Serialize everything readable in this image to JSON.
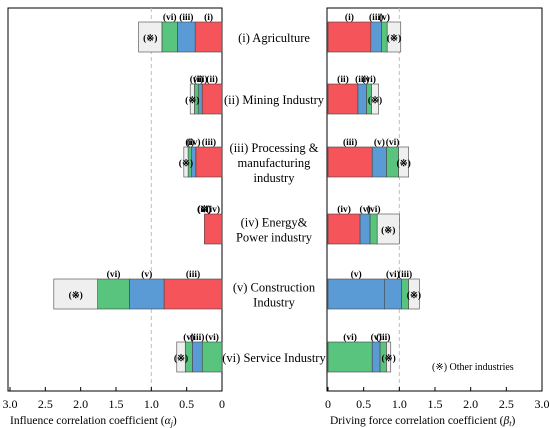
{
  "colors": {
    "vi": "#58c47e",
    "v": "#5b9bd5",
    "iii": "#f4545a",
    "ii": "#f4545a",
    "iv": "#f4545a",
    "i": "#f4545a",
    "other": "#efefef",
    "frame": "#000000",
    "refline": "#bfbfbf"
  },
  "chart_data": [
    {
      "type": "bar",
      "orientation": "horizontal-stacked",
      "x_reversed": true,
      "xlabel_prefix": "Influence correlation coefficient (",
      "xlabel_sym": "α",
      "xlabel_sub": "j",
      "xlabel_suffix": ")",
      "xlim": [
        0,
        3.0
      ],
      "xticks": [
        "3.0",
        "2.5",
        "2.0",
        "1.5",
        "1.0",
        "0.5",
        "0"
      ],
      "reference_line": 1.0,
      "industries": [
        {
          "segments": [
            {
              "key": "i",
              "label": "(i)",
              "value": 0.38
            },
            {
              "key": "v",
              "label": "(iii)",
              "value": 0.25
            },
            {
              "key": "vi",
              "label": "(vi)",
              "value": 0.22
            },
            {
              "key": "other",
              "label": "(※)",
              "value": 0.33
            }
          ]
        },
        {
          "segments": [
            {
              "key": "ii",
              "label": "(ii)",
              "value": 0.28
            },
            {
              "key": "v",
              "label": "(iii)",
              "value": 0.05
            },
            {
              "key": "vi",
              "label": "(vi)",
              "value": 0.06
            },
            {
              "key": "other",
              "label": "(※)",
              "value": 0.06
            }
          ]
        },
        {
          "segments": [
            {
              "key": "iii",
              "label": "(iii)",
              "value": 0.37
            },
            {
              "key": "v",
              "label": "(iv)",
              "value": 0.06
            },
            {
              "key": "vi",
              "label": "(i)",
              "value": 0.05
            },
            {
              "key": "other",
              "label": "(※)",
              "value": 0.06
            }
          ]
        },
        {
          "segments": [
            {
              "key": "iv",
              "label": "(iv)",
              "value": 0.25
            },
            {
              "key": "v",
              "label": "(iii)",
              "value": 0.0
            },
            {
              "key": "vi",
              "label": "(vi)",
              "value": 0.0
            },
            {
              "key": "other",
              "label": "(※)",
              "value": 0.0
            }
          ]
        },
        {
          "segments": [
            {
              "key": "iii",
              "label": "(iii)",
              "value": 0.82
            },
            {
              "key": "v",
              "label": "(v)",
              "value": 0.49
            },
            {
              "key": "vi",
              "label": "(vi)",
              "value": 0.45
            },
            {
              "key": "other",
              "label": "(※)",
              "value": 0.62
            }
          ]
        },
        {
          "segments": [
            {
              "key": "vi",
              "label": "(vi)",
              "value": 0.28
            },
            {
              "key": "v",
              "label": "(iii)",
              "value": 0.14
            },
            {
              "key": "vi",
              "label": "(v)",
              "value": 0.1
            },
            {
              "key": "other",
              "label": "(※)",
              "value": 0.12
            }
          ]
        }
      ]
    },
    {
      "type": "bar",
      "orientation": "horizontal-stacked",
      "xlabel_prefix": "Driving force correlation coefficient (",
      "xlabel_sym": "β",
      "xlabel_sub": "t",
      "xlabel_suffix": ")",
      "xlim": [
        0,
        3.0
      ],
      "xticks": [
        "0",
        "0.5",
        "1.0",
        "1.5",
        "2.0",
        "2.5",
        "3.0"
      ],
      "reference_line": 1.0,
      "legend_text": "(※) Other industries",
      "industries": [
        {
          "segments": [
            {
              "key": "i",
              "label": "(i)",
              "value": 0.6
            },
            {
              "key": "v",
              "label": "(iii)",
              "value": 0.15
            },
            {
              "key": "vi",
              "label": "(v)",
              "value": 0.08
            },
            {
              "key": "other",
              "label": "(※)",
              "value": 0.19
            }
          ]
        },
        {
          "segments": [
            {
              "key": "ii",
              "label": "(ii)",
              "value": 0.42
            },
            {
              "key": "v",
              "label": "(iii)",
              "value": 0.12
            },
            {
              "key": "vi",
              "label": "(vi)",
              "value": 0.07
            },
            {
              "key": "other",
              "label": "(※)",
              "value": 0.1
            }
          ]
        },
        {
          "segments": [
            {
              "key": "iii",
              "label": "(iii)",
              "value": 0.62
            },
            {
              "key": "v",
              "label": "(v)",
              "value": 0.2
            },
            {
              "key": "vi",
              "label": "(vi)",
              "value": 0.17
            },
            {
              "key": "other",
              "label": "(※)",
              "value": 0.14
            }
          ]
        },
        {
          "segments": [
            {
              "key": "iv",
              "label": "(iv)",
              "value": 0.45
            },
            {
              "key": "v",
              "label": "(v)",
              "value": 0.14
            },
            {
              "key": "vi",
              "label": "(vi)",
              "value": 0.1
            },
            {
              "key": "other",
              "label": "(※)",
              "value": 0.31
            }
          ]
        },
        {
          "segments": [
            {
              "key": "v",
              "label": "(v)",
              "value": 0.79
            },
            {
              "key": "v",
              "label": "(vi)",
              "value": 0.24
            },
            {
              "key": "vi",
              "label": "(iii)",
              "value": 0.1
            },
            {
              "key": "other",
              "label": "(※)",
              "value": 0.15
            }
          ]
        },
        {
          "segments": [
            {
              "key": "vi",
              "label": "(vi)",
              "value": 0.62
            },
            {
              "key": "v",
              "label": "(v)",
              "value": 0.11
            },
            {
              "key": "vi",
              "label": "(iii)",
              "value": 0.09
            },
            {
              "key": "other",
              "label": "(※)",
              "value": 0.06
            }
          ]
        }
      ]
    }
  ],
  "industry_labels": [
    [
      "(i) Agriculture"
    ],
    [
      "(ii) Mining Industry"
    ],
    [
      "(iii) Processing &",
      "manufacturing",
      "industry"
    ],
    [
      "(iv) Energy&",
      "Power industry"
    ],
    [
      "(v) Construction",
      "Industry"
    ],
    [
      "(vi) Service Industry"
    ]
  ]
}
